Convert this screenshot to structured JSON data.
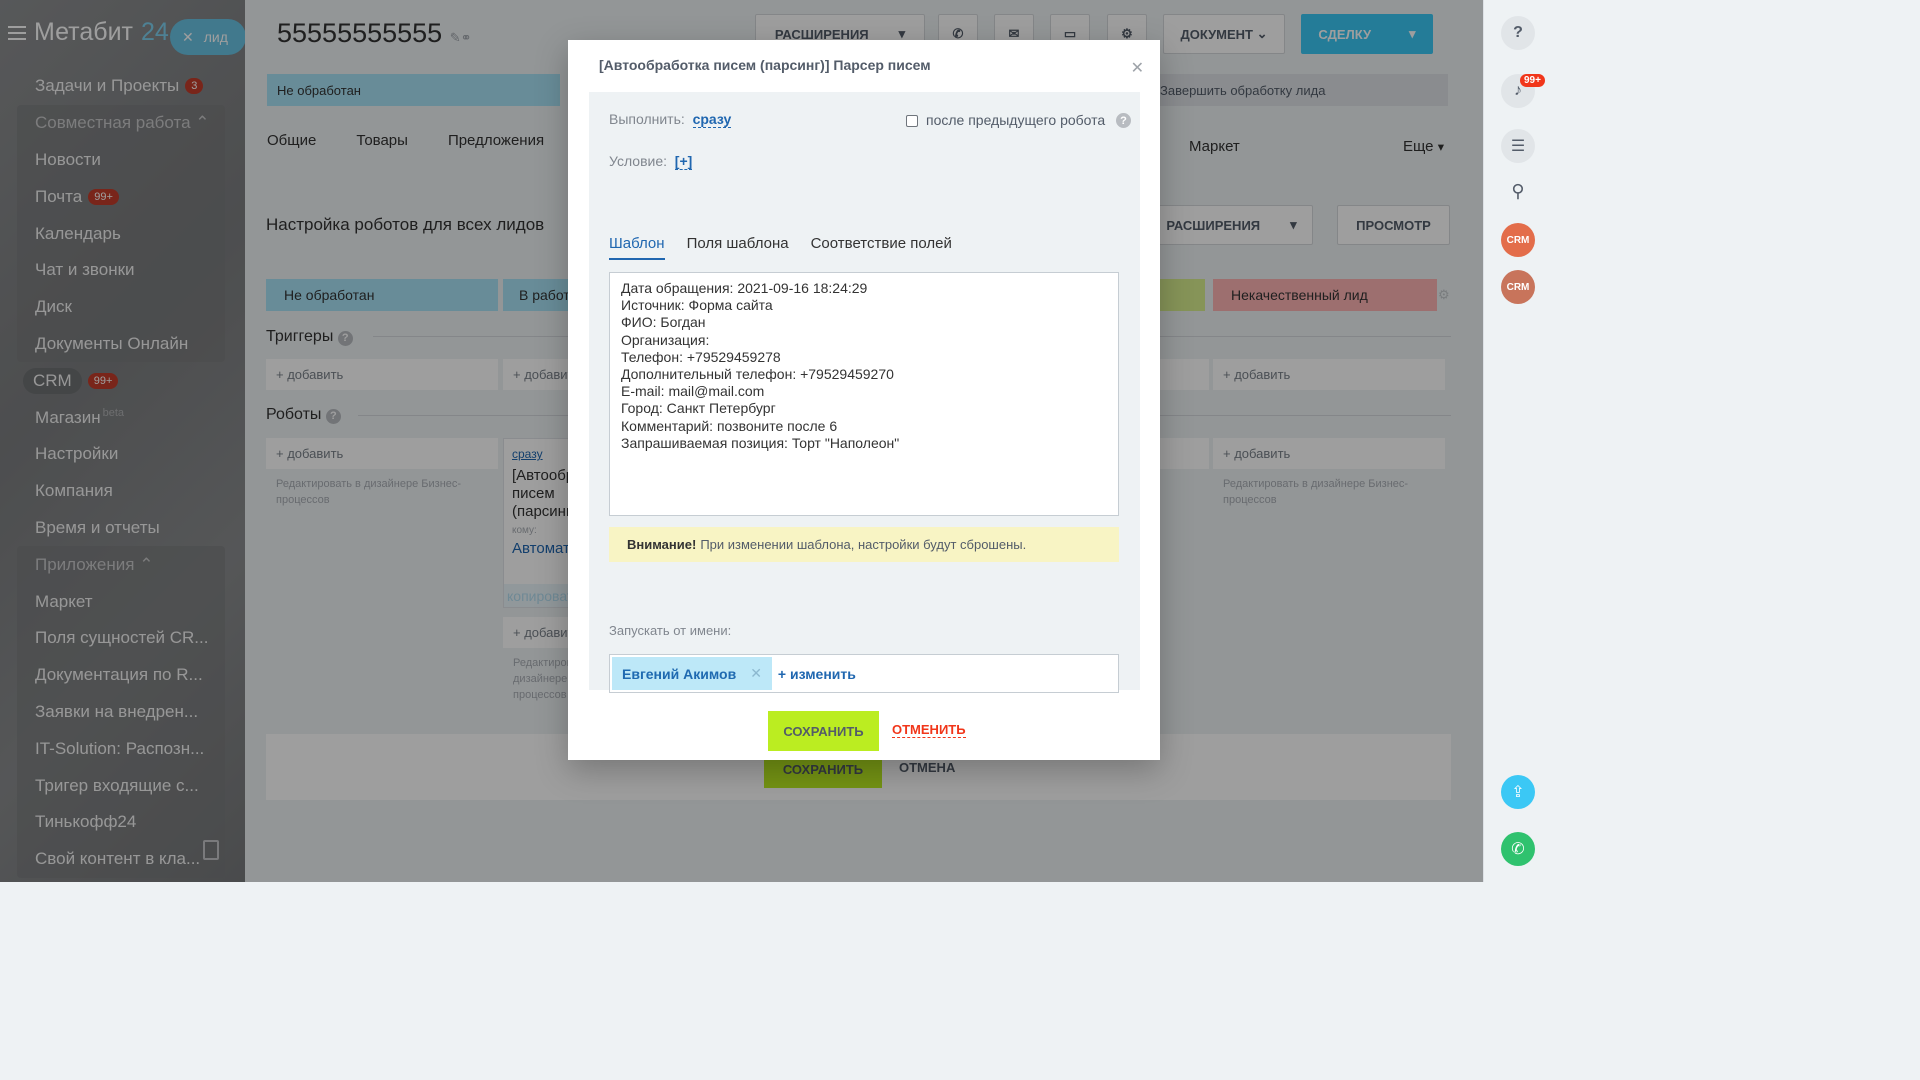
{
  "left": {
    "brand": "Метабит",
    "brand_suffix": "24",
    "lead_button": "лид",
    "items": [
      {
        "label": "Задачи и Проекты",
        "counter": "3"
      },
      {
        "label": "Совместная работа",
        "group_head": true
      },
      {
        "label": "Новости"
      },
      {
        "label": "Почта",
        "counter": "99+"
      },
      {
        "label": "Календарь"
      },
      {
        "label": "Чат и звонки"
      },
      {
        "label": "Диск"
      },
      {
        "label": "Документы Онлайн"
      },
      {
        "label": "CRM",
        "counter": "99+"
      },
      {
        "label": "Магазин",
        "badge": "beta"
      },
      {
        "label": "Настройки"
      },
      {
        "label": "Компания"
      },
      {
        "label": "Время и отчеты"
      },
      {
        "label": "Приложения",
        "group_head": true
      },
      {
        "label": "Маркет"
      },
      {
        "label": "Поля сущностей CR..."
      },
      {
        "label": "Документация по R..."
      },
      {
        "label": "Заявки на внедрен..."
      },
      {
        "label": "IT-Solution: Распозн..."
      },
      {
        "label": "Тригер входящие с..."
      },
      {
        "label": "Тинькофф24"
      },
      {
        "label": "Свой контент в кла..."
      }
    ]
  },
  "header": {
    "title": "55555555555",
    "extensions": "РАСШИРЕНИЯ",
    "document": "ДОКУМЕНТ",
    "deal": "СДЕЛКУ"
  },
  "stages_top": {
    "first": "Не обработан",
    "last": "Завершить обработку лида"
  },
  "tabs": {
    "general": "Общие",
    "goods": "Товары",
    "offers": "Предложения",
    "market": "Маркет",
    "more": "Еще"
  },
  "robots_page": {
    "heading": "Настройка роботов для всех лидов",
    "extensions": "РАСШИРЕНИЯ",
    "preview": "ПРОСМОТР",
    "stage1": "Не обработан",
    "stage2": "В работе",
    "stage_last": "Некачественный лид",
    "triggers": "Триггеры",
    "robots": "Роботы",
    "add": "+ добавить",
    "designer_hint": "Редактировать в дизайнере Бизнес-процессов",
    "robot_card_when": "сразу",
    "robot_card_title": "[Автообработка писем (парсинг)]",
    "robot_card_to": "кому:",
    "robot_card_user": "Автоматически",
    "robot_card_copy": "копировать",
    "save": "СОХРАНИТЬ",
    "cancel": "ОТМЕНА"
  },
  "modal": {
    "title": "[Автообработка писем (парсинг)] Парсер писем",
    "execute_label": "Выполнить:",
    "execute_value": "сразу",
    "after_prev": "после предыдущего робота",
    "condition_label": "Условие:",
    "condition_value": "[+]",
    "tabs": [
      "Шаблон",
      "Поля шаблона",
      "Соответствие полей"
    ],
    "template_text": "Дата обращения: 2021-09-16 18:24:29\nИсточник: Форма сайта\nФИО: Богдан\nОрганизация:\nТелефон: +79529459278\nДополнительный телефон: +79529459270\nE-mail: mail@mail.com\nГород: Санкт Петербург\nКомментарий: позвоните после 6\nЗапрашиваемая позиция: Торт \"Наполеон\"",
    "warning_bold": "Внимание!",
    "warning_text": "При изменении шаблона, настройки будут сброшены.",
    "run_as_label": "Запускать от имени:",
    "user": "Евгений Акимов",
    "change": "+ изменить",
    "save": "СОХРАНИТЬ",
    "cancel": "ОТМЕНИТЬ"
  },
  "right": {
    "notifications": "99+"
  },
  "colors": {
    "accent": "#2067b0",
    "stage_new": "#a9e3f6",
    "stage_bad": "#fdb3b4",
    "save": "#bbed21",
    "deal": "#3bc8f5"
  }
}
